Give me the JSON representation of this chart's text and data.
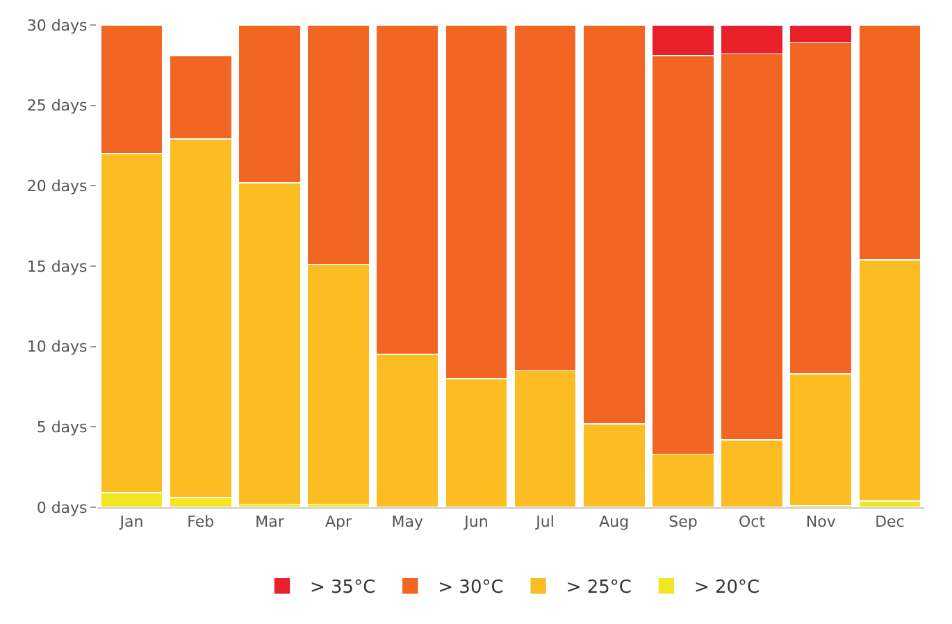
{
  "chart_data": {
    "type": "bar",
    "stacked": true,
    "categories": [
      "Jan",
      "Feb",
      "Mar",
      "Apr",
      "May",
      "Jun",
      "Jul",
      "Aug",
      "Sep",
      "Oct",
      "Nov",
      "Dec"
    ],
    "series": [
      {
        "name": "> 20°C",
        "color": "#f3e521",
        "values": [
          0.9,
          0.6,
          0.2,
          0.2,
          null,
          null,
          null,
          null,
          null,
          null,
          0.1,
          0.4
        ]
      },
      {
        "name": "> 25°C",
        "color": "#fbbd21",
        "values": [
          21.1,
          22.3,
          20.0,
          14.9,
          9.5,
          8.0,
          8.5,
          5.2,
          3.3,
          4.2,
          8.2,
          15.0
        ]
      },
      {
        "name": "> 30°C",
        "color": "#f26522",
        "values": [
          8.0,
          5.2,
          9.8,
          14.9,
          20.5,
          22.0,
          21.5,
          24.8,
          24.8,
          24.0,
          20.6,
          14.6
        ]
      },
      {
        "name": "> 35°C",
        "color": "#e8202a",
        "values": [
          null,
          null,
          null,
          null,
          null,
          null,
          null,
          null,
          1.9,
          1.8,
          1.1,
          null
        ]
      }
    ],
    "ylim": [
      0,
      30
    ],
    "yticks": [
      {
        "value": 0,
        "label": "0 days"
      },
      {
        "value": 5,
        "label": "5 days"
      },
      {
        "value": 10,
        "label": "10 days"
      },
      {
        "value": 15,
        "label": "15 days"
      },
      {
        "value": 20,
        "label": "20 days"
      },
      {
        "value": 25,
        "label": "25 days"
      },
      {
        "value": 30,
        "label": "30 days"
      }
    ],
    "legend": "bottom"
  }
}
